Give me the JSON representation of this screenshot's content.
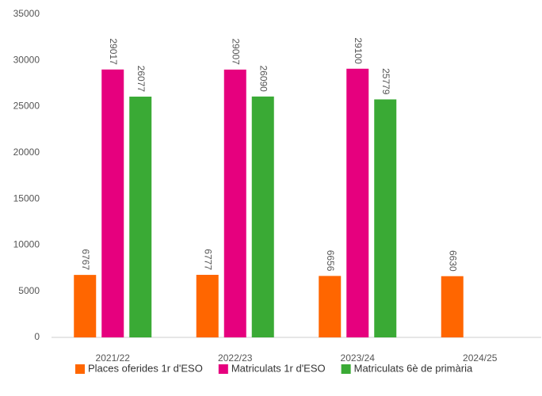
{
  "chart_data": {
    "type": "bar",
    "categories": [
      "2021/22",
      "2022/23",
      "2023/24",
      "2024/25"
    ],
    "series": [
      {
        "name": "Places oferides 1r d'ESO",
        "color": "#ff6600",
        "values": [
          6767,
          6777,
          6656,
          6630
        ]
      },
      {
        "name": "Matriculats 1r d'ESO",
        "color": "#e6007e",
        "values": [
          29017,
          29007,
          29100,
          null
        ]
      },
      {
        "name": "Matriculats 6è de primària",
        "color": "#3aaa35",
        "values": [
          26077,
          26090,
          25779,
          null
        ]
      }
    ],
    "ylim": [
      0,
      35000
    ],
    "yticks": [
      0,
      5000,
      10000,
      15000,
      20000,
      25000,
      30000,
      35000
    ],
    "grid": false,
    "legend": "bottom"
  }
}
